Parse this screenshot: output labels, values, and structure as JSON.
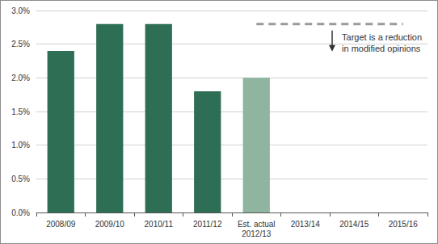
{
  "chart_data": {
    "type": "bar",
    "categories": [
      "2008/09",
      "2009/10",
      "2010/11",
      "2011/12",
      "Est. actual\n2012/13",
      "2013/14",
      "2014/15",
      "2015/16"
    ],
    "series": [
      {
        "type": "bar",
        "values": [
          2.4,
          2.8,
          2.8,
          1.8,
          2.0,
          null,
          null,
          null
        ],
        "colors": [
          "#2e6e55",
          "#2e6e55",
          "#2e6e55",
          "#2e6e55",
          "#8fb5a0",
          "#2e6e55",
          "#2e6e55",
          "#2e6e55"
        ]
      },
      {
        "type": "line",
        "color": "#9a9a9a",
        "line_style": "dashed",
        "values": [
          null,
          null,
          null,
          null,
          2.8,
          2.8,
          2.8,
          2.8
        ]
      }
    ],
    "ylim": [
      0,
      3
    ],
    "yticks": [
      {
        "value": 0,
        "label": "0.0%"
      },
      {
        "value": 0.5,
        "label": "0.5%"
      },
      {
        "value": 1,
        "label": "1.0%"
      },
      {
        "value": 1.5,
        "label": "1.5%"
      },
      {
        "value": 2,
        "label": "2.0%"
      },
      {
        "value": 2.5,
        "label": "2.5%"
      },
      {
        "value": 3,
        "label": "3.0%"
      }
    ],
    "grid": true,
    "annotation": "Target is a reduction\nin modified opinions"
  }
}
